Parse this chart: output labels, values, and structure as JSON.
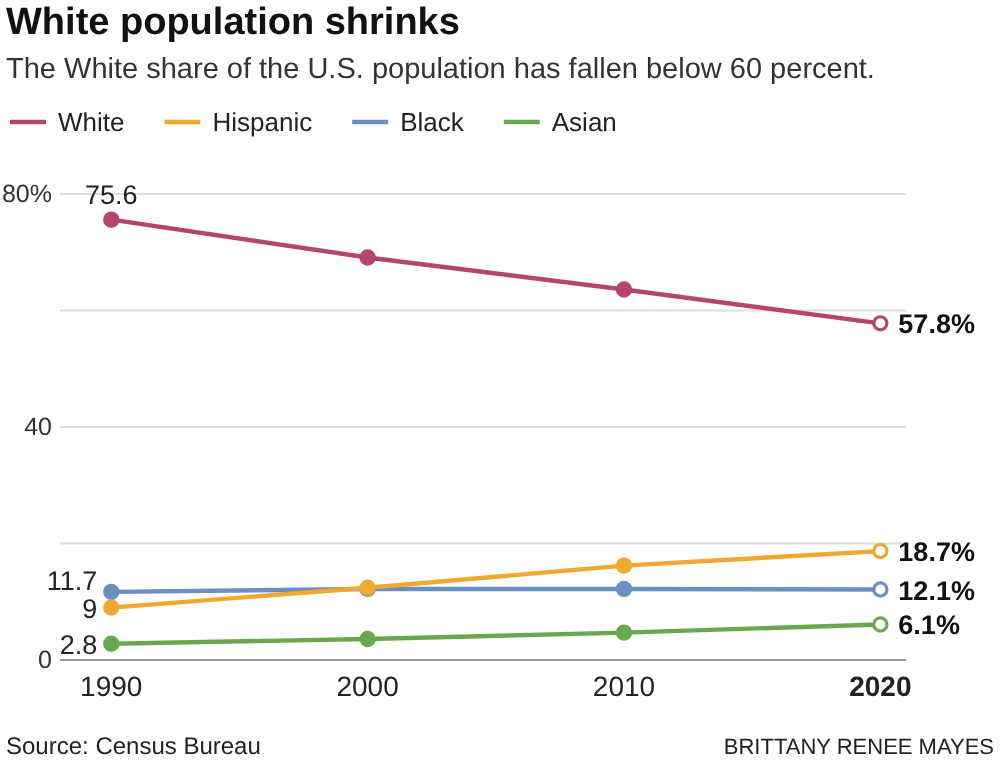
{
  "chart_data": {
    "type": "line",
    "title": "White population shrinks",
    "subtitle": "The White share of the U.S. population has fallen below 60 percent.",
    "x": [
      1990,
      2000,
      2010,
      2020
    ],
    "xlim": [
      1988,
      2021
    ],
    "xticks": [
      1990,
      2000,
      2010,
      2020
    ],
    "ylim": [
      0,
      80
    ],
    "yticks": [
      0,
      {
        "value": 20,
        "label": null
      },
      40,
      {
        "value": 60,
        "label": null
      },
      {
        "value": 80,
        "label": "80%"
      }
    ],
    "grid": "y",
    "legend": "top",
    "marker": "circle",
    "line_style": "solid",
    "series": [
      {
        "name": "White",
        "color": "#b5446e",
        "values": [
          75.6,
          69.1,
          63.6,
          57.8
        ],
        "value_labels": [
          "75.6",
          null,
          null,
          "57.8%"
        ]
      },
      {
        "name": "Hispanic",
        "color": "#f0a830",
        "values": [
          9,
          12.4,
          16.2,
          18.7
        ],
        "value_labels": [
          "9",
          null,
          null,
          "18.7%"
        ]
      },
      {
        "name": "Black",
        "color": "#6a8fc0",
        "values": [
          11.7,
          12.2,
          12.2,
          12.1
        ],
        "value_labels": [
          "11.7",
          null,
          null,
          "12.1%"
        ]
      },
      {
        "name": "Asian",
        "color": "#6aa84f",
        "values": [
          2.8,
          3.6,
          4.7,
          6.1
        ],
        "value_labels": [
          "2.8",
          null,
          null,
          "6.1%"
        ]
      }
    ],
    "annotations": [
      "Source: Census Bureau",
      "BRITTANY RENEE MAYES"
    ]
  }
}
